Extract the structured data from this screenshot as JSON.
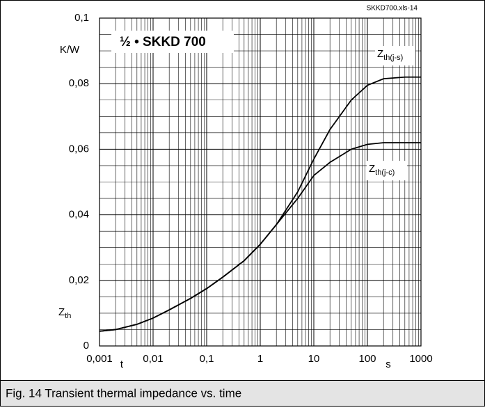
{
  "chart_data": {
    "type": "line",
    "file_label": "SKKD700.xls-14",
    "title": "½ • SKKD 700",
    "y_unit": "K/W",
    "y_label": {
      "text": "Z",
      "sub": "th"
    },
    "x_label": "t",
    "x_unit": "s",
    "caption": "Fig. 14 Transient thermal impedance vs. time",
    "x_scale": "log",
    "grid": true,
    "x": [
      0.001,
      0.002,
      0.005,
      0.01,
      0.02,
      0.05,
      0.1,
      0.2,
      0.5,
      1,
      2,
      5,
      10,
      20,
      50,
      100,
      200,
      500,
      1000
    ],
    "series": [
      {
        "label": {
          "text": "Z",
          "sub": "th(j-s)"
        },
        "color": "#000000",
        "values": [
          0.0045,
          0.005,
          0.0066,
          0.0085,
          0.011,
          0.0145,
          0.0175,
          0.021,
          0.026,
          0.031,
          0.037,
          0.047,
          0.057,
          0.066,
          0.075,
          0.0795,
          0.0815,
          0.082,
          0.082
        ]
      },
      {
        "label": {
          "text": "Z",
          "sub": "th(j-c)"
        },
        "color": "#000000",
        "values": [
          0.0045,
          0.005,
          0.0066,
          0.0085,
          0.011,
          0.0145,
          0.0175,
          0.021,
          0.026,
          0.031,
          0.037,
          0.045,
          0.052,
          0.056,
          0.06,
          0.0615,
          0.062,
          0.062,
          0.062
        ]
      }
    ],
    "xlim": [
      0.001,
      1000
    ],
    "xticks": [
      {
        "value": 0.001,
        "label": "0,001"
      },
      {
        "value": 0.01,
        "label": "0,01"
      },
      {
        "value": 0.1,
        "label": "0,1"
      },
      1,
      10,
      100,
      1000
    ],
    "ylim": [
      0,
      0.1
    ],
    "yticks": [
      0,
      {
        "value": 0.02,
        "label": "0,02"
      },
      {
        "value": 0.04,
        "label": "0,04"
      },
      {
        "value": 0.06,
        "label": "0,06"
      },
      {
        "value": 0.08,
        "label": "0,08"
      },
      {
        "value": 0.1,
        "label": "0,1"
      }
    ]
  }
}
